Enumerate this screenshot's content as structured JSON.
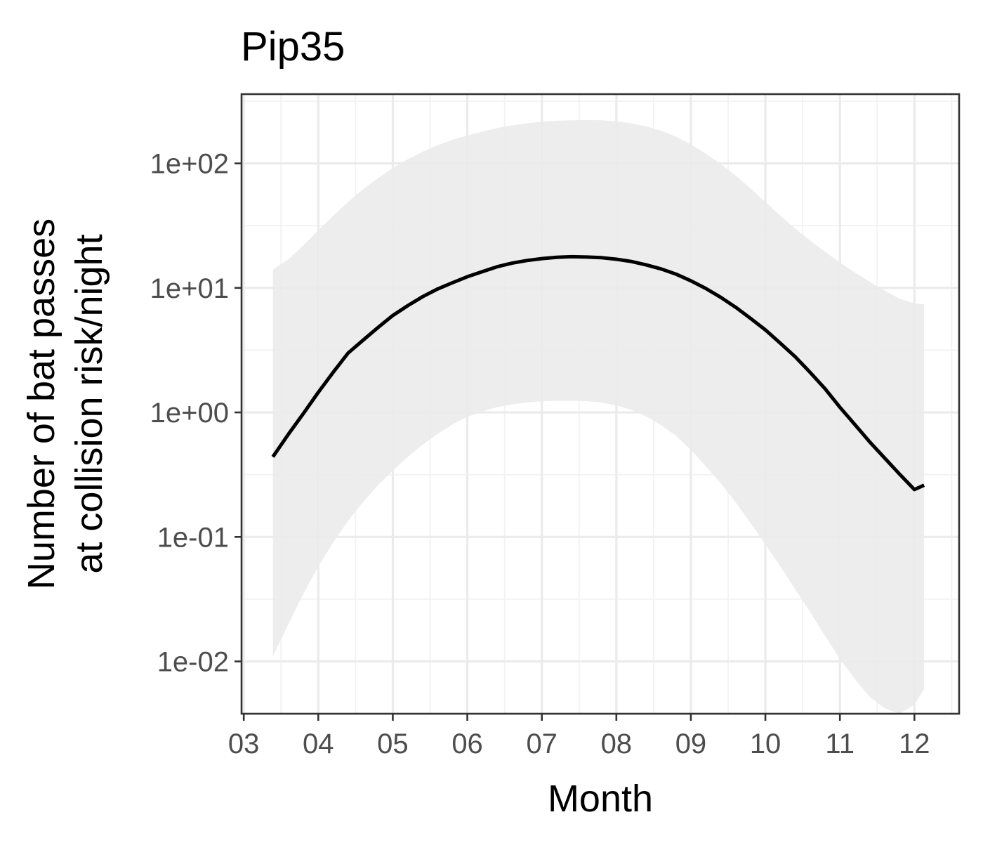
{
  "chart_data": {
    "type": "line",
    "title": "Pip35",
    "xlabel": "Month",
    "ylabel_lines": [
      "Number of bat passes",
      "at collision risk/night"
    ],
    "x_scale": "month",
    "y_scale": "log10",
    "xlim": [
      2.97,
      12.6
    ],
    "ylim": [
      0.0038,
      360
    ],
    "x_ticks": [
      3,
      4,
      5,
      6,
      7,
      8,
      9,
      10,
      11,
      12
    ],
    "x_tick_labels": [
      "03",
      "04",
      "05",
      "06",
      "07",
      "08",
      "09",
      "10",
      "11",
      "12"
    ],
    "y_ticks": [
      0.01,
      0.1,
      1,
      10,
      100
    ],
    "y_tick_labels": [
      "1e-02",
      "1e-01",
      "1e+00",
      "1e+01",
      "1e+02"
    ],
    "grid": true,
    "legend": "none",
    "series": [
      {
        "x": [
          3.39,
          3.6,
          3.8,
          4.0,
          4.2,
          4.4,
          4.6,
          4.8,
          5.0,
          5.2,
          5.4,
          5.6,
          5.8,
          6.0,
          6.2,
          6.4,
          6.6,
          6.8,
          7.0,
          7.2,
          7.4,
          7.6,
          7.8,
          8.0,
          8.2,
          8.4,
          8.6,
          8.8,
          9.0,
          9.2,
          9.4,
          9.6,
          9.8,
          10.0,
          10.2,
          10.4,
          10.6,
          10.8,
          11.0,
          11.2,
          11.4,
          11.6,
          11.8,
          12.0,
          12.13
        ],
        "y": [
          0.44,
          0.67,
          0.98,
          1.45,
          2.1,
          3.0,
          3.8,
          4.8,
          6.0,
          7.2,
          8.5,
          9.8,
          11.0,
          12.3,
          13.5,
          14.8,
          15.8,
          16.6,
          17.2,
          17.6,
          17.8,
          17.7,
          17.5,
          17.0,
          16.3,
          15.3,
          14.2,
          12.9,
          11.4,
          9.9,
          8.4,
          7.0,
          5.7,
          4.6,
          3.6,
          2.8,
          2.1,
          1.55,
          1.1,
          0.8,
          0.58,
          0.43,
          0.32,
          0.24,
          0.26
        ]
      }
    ],
    "ci_band": {
      "x": [
        3.39,
        3.6,
        3.8,
        4.0,
        4.2,
        4.4,
        4.6,
        4.8,
        5.0,
        5.2,
        5.4,
        5.6,
        5.8,
        6.0,
        6.2,
        6.4,
        6.6,
        6.8,
        7.0,
        7.2,
        7.4,
        7.6,
        7.8,
        8.0,
        8.2,
        8.4,
        8.6,
        8.8,
        9.0,
        9.2,
        9.4,
        9.6,
        9.8,
        10.0,
        10.2,
        10.4,
        10.6,
        10.8,
        11.0,
        11.2,
        11.4,
        11.6,
        11.8,
        12.0,
        12.13
      ],
      "lower": [
        0.011,
        0.02,
        0.035,
        0.058,
        0.09,
        0.135,
        0.19,
        0.26,
        0.34,
        0.44,
        0.55,
        0.67,
        0.8,
        0.92,
        1.02,
        1.1,
        1.16,
        1.2,
        1.23,
        1.24,
        1.24,
        1.23,
        1.2,
        1.14,
        1.05,
        0.93,
        0.79,
        0.65,
        0.5,
        0.37,
        0.27,
        0.19,
        0.13,
        0.087,
        0.058,
        0.038,
        0.025,
        0.016,
        0.0105,
        0.0072,
        0.0052,
        0.0042,
        0.0038,
        0.0045,
        0.006
      ],
      "upper": [
        14,
        17,
        22,
        29,
        38,
        49,
        62,
        76,
        92,
        108,
        124,
        140,
        155,
        168,
        180,
        192,
        202,
        210,
        216,
        220,
        222,
        223,
        222,
        218,
        210,
        198,
        183,
        164,
        142,
        120,
        99,
        80,
        63,
        49,
        38,
        30,
        24,
        19.5,
        16,
        13.3,
        11.2,
        9.5,
        8.2,
        7.5,
        7.4
      ]
    },
    "colors": {
      "line": "#000000",
      "band": "#ebebeb",
      "panel_border": "#333333",
      "grid_major": "#ebebeb",
      "grid_minor": "#f2f2f2",
      "tick_label": "#4d4d4d"
    }
  }
}
